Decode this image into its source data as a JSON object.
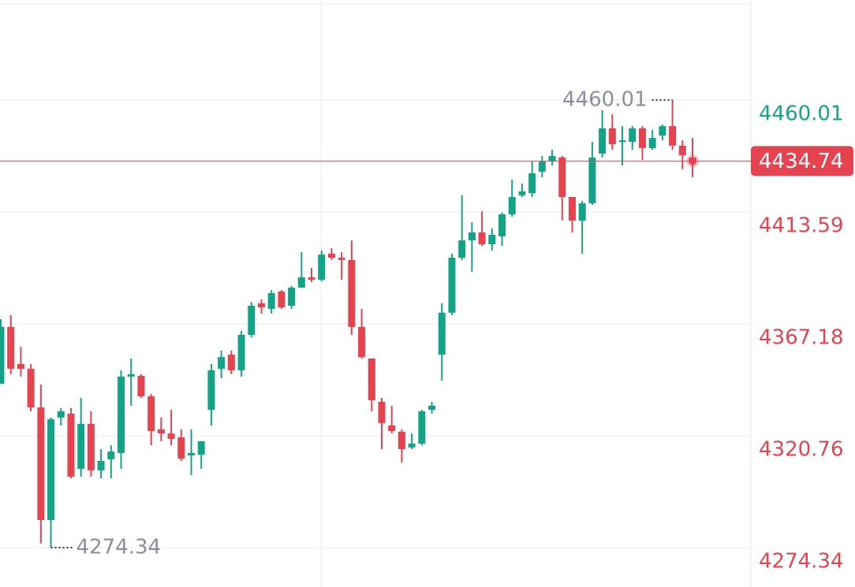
{
  "chart_data": {
    "type": "candlestick",
    "up_color": "#13a386",
    "down_color": "#e5434f",
    "ylim": [
      4258,
      4501.53
    ],
    "yticks": [
      4460.01,
      4413.59,
      4367.18,
      4320.76,
      4274.34
    ],
    "grid": true,
    "open": [
      4342.3,
      4365.9,
      4350.5,
      4348.5,
      4332.5,
      4285.8,
      4328.3,
      4329.9,
      4307.0,
      4325.7,
      4306.4,
      4311.0,
      4313.6,
      4345.3,
      4345.6,
      4337.1,
      4323.4,
      4321.7,
      4320.1,
      4312.6,
      4312.9,
      4331.5,
      4348.5,
      4354.4,
      4347.9,
      4362.6,
      4375.7,
      4373.4,
      4380.6,
      4374.7,
      4382.2,
      4386.5,
      4385.5,
      4396.3,
      4394.6,
      4393.7,
      4365.9,
      4352.8,
      4334.8,
      4325.0,
      4322.4,
      4315.9,
      4317.5,
      4331.5,
      4354.4,
      4371.8,
      4394.6,
      4401.8,
      4405.1,
      4400.2,
      4403.5,
      4412.6,
      4420.5,
      4421.4,
      4430.3,
      4434.5,
      4436.2,
      4419.8,
      4410.0,
      4417.2,
      4437.8,
      4448.3,
      4442.7,
      4442.7,
      4448.3,
      4440.1,
      4445.3,
      4449.2,
      4441.1,
      4436.2
    ],
    "high": [
      4369.1,
      4370.8,
      4357.7,
      4350.5,
      4342.0,
      4328.3,
      4332.2,
      4332.2,
      4336.5,
      4330.9,
      4315.2,
      4316.8,
      4347.9,
      4352.8,
      4346.3,
      4338.1,
      4328.3,
      4331.5,
      4323.4,
      4323.4,
      4318.5,
      4350.5,
      4356.1,
      4356.1,
      4364.2,
      4376.3,
      4377.3,
      4381.2,
      4381.2,
      4382.9,
      4396.9,
      4390.4,
      4397.6,
      4398.6,
      4396.9,
      4401.8,
      4373.4,
      4352.8,
      4336.5,
      4333.2,
      4323.4,
      4321.7,
      4331.5,
      4334.8,
      4375.7,
      4396.3,
      4420.5,
      4409.3,
      4413.9,
      4406.7,
      4413.3,
      4427.0,
      4425.4,
      4434.5,
      4436.8,
      4439.4,
      4436.8,
      4419.8,
      4418.2,
      4442.7,
      4455.8,
      4454.1,
      4449.2,
      4449.2,
      4449.2,
      4447.6,
      4449.9,
      4460.01,
      4443.3,
      4444.3
    ],
    "low": [
      4342.3,
      4346.3,
      4345.3,
      4330.9,
      4276.0,
      4274.34,
      4325.0,
      4303.1,
      4303.8,
      4303.8,
      4303.1,
      4303.1,
      4307.0,
      4333.2,
      4336.5,
      4316.8,
      4318.5,
      4316.8,
      4310.3,
      4304.4,
      4307.0,
      4325.0,
      4344.6,
      4346.3,
      4345.3,
      4361.6,
      4371.4,
      4371.4,
      4373.4,
      4373.4,
      4382.2,
      4384.5,
      4384.8,
      4393.7,
      4385.5,
      4362.6,
      4352.8,
      4330.9,
      4315.2,
      4321.7,
      4309.6,
      4315.2,
      4316.8,
      4329.9,
      4343.6,
      4370.8,
      4393.7,
      4388.8,
      4399.5,
      4397.6,
      4399.5,
      4411.6,
      4419.8,
      4419.8,
      4428.0,
      4432.9,
      4410.0,
      4405.1,
      4396.3,
      4416.5,
      4436.2,
      4439.4,
      4432.9,
      4439.4,
      4435.2,
      4439.4,
      4443.3,
      4439.4,
      4431.3,
      4428.0
    ],
    "close": [
      4365.9,
      4348.5,
      4348.5,
      4332.5,
      4285.8,
      4327.6,
      4330.9,
      4303.8,
      4325.7,
      4306.4,
      4310.3,
      4314.2,
      4345.3,
      4346.3,
      4337.1,
      4322.7,
      4321.7,
      4319.5,
      4311.3,
      4313.6,
      4318.5,
      4347.9,
      4353.4,
      4347.9,
      4362.6,
      4374.7,
      4374.0,
      4379.9,
      4374.0,
      4382.2,
      4386.5,
      4385.5,
      4395.9,
      4394.6,
      4393.7,
      4365.9,
      4353.4,
      4335.5,
      4326.0,
      4322.7,
      4315.2,
      4317.5,
      4330.9,
      4333.2,
      4371.8,
      4394.6,
      4401.8,
      4405.1,
      4400.2,
      4404.1,
      4412.6,
      4419.8,
      4422.1,
      4429.6,
      4434.5,
      4436.8,
      4419.8,
      4410.0,
      4417.2,
      4436.2,
      4448.3,
      4441.7,
      4443.3,
      4448.3,
      4440.1,
      4444.3,
      4449.2,
      4441.1,
      4437.1,
      4434.74
    ]
  }
}
